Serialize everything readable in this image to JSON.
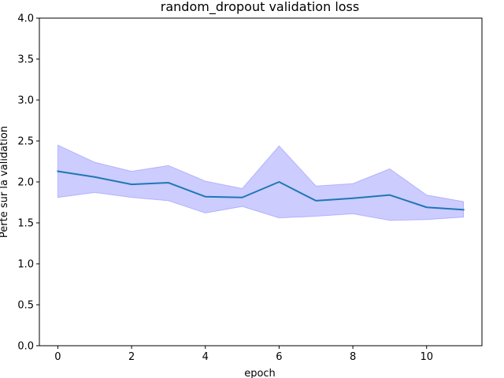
{
  "chart_data": {
    "type": "line",
    "title": "random_dropout validation loss",
    "xlabel": "epoch",
    "ylabel": "Perte sur la validation",
    "xlim": [
      -0.5,
      11.5
    ],
    "ylim": [
      0.0,
      4.0
    ],
    "xticks": [
      0,
      2,
      4,
      6,
      8,
      10
    ],
    "yticks": [
      0.0,
      0.5,
      1.0,
      1.5,
      2.0,
      2.5,
      3.0,
      3.5,
      4.0
    ],
    "grid": false,
    "x": [
      0,
      1,
      2,
      3,
      4,
      5,
      6,
      7,
      8,
      9,
      10,
      11
    ],
    "series": [
      {
        "values": [
          2.13,
          2.06,
          1.97,
          1.99,
          1.82,
          1.81,
          2.0,
          1.77,
          1.8,
          1.84,
          1.69,
          1.66
        ],
        "lower": [
          1.81,
          1.87,
          1.81,
          1.77,
          1.62,
          1.7,
          1.56,
          1.58,
          1.61,
          1.53,
          1.54,
          1.57
        ],
        "upper": [
          2.45,
          2.24,
          2.13,
          2.2,
          2.01,
          1.92,
          2.44,
          1.95,
          1.98,
          2.16,
          1.84,
          1.76
        ],
        "line_color": "#1f77b4",
        "band_color": "#0000ff"
      }
    ]
  }
}
